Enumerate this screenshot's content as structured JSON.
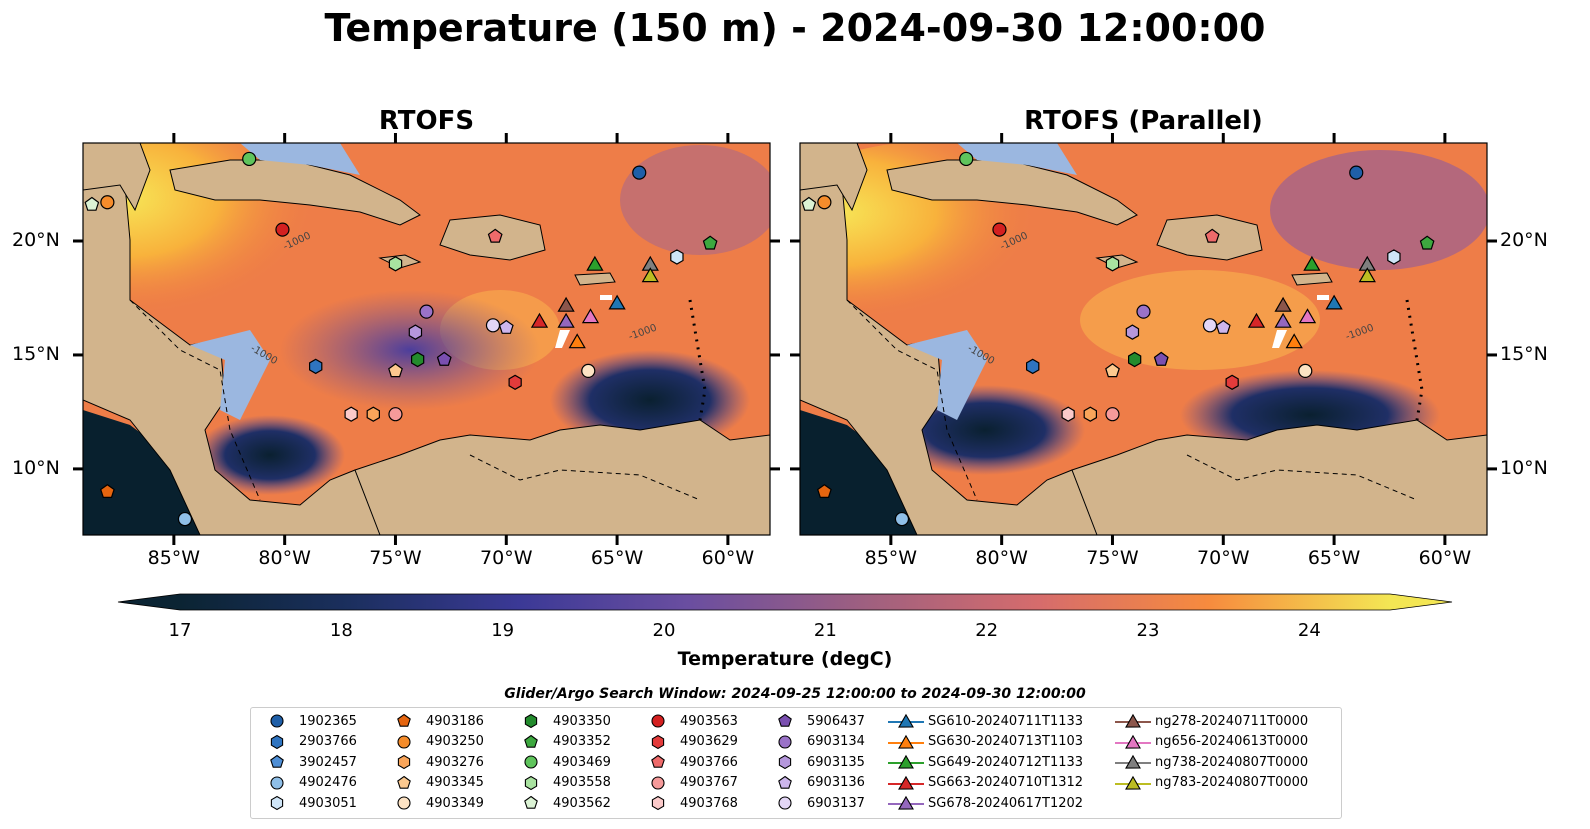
{
  "title": "Temperature (150 m) - 2024-09-30 12:00:00",
  "panels": [
    {
      "title": "RTOFS"
    },
    {
      "title": "RTOFS (Parallel)"
    }
  ],
  "map": {
    "lon_ticks": [
      "85°W",
      "80°W",
      "75°W",
      "70°W",
      "65°W",
      "60°W"
    ],
    "lat_ticks": [
      "20°N",
      "15°N",
      "10°N"
    ],
    "isobath_label": "-1000",
    "colors": {
      "land": "#d2b48c",
      "shelf": "#9bb7e0",
      "cold": "#08202e",
      "warm": "#f3e654"
    }
  },
  "colorbar": {
    "label": "Temperature (degC)",
    "ticks": [
      "17",
      "18",
      "19",
      "20",
      "21",
      "22",
      "23",
      "24"
    ],
    "range": [
      17,
      24.5
    ],
    "step": 0.25
  },
  "legend": {
    "title": "Glider/Argo Search Window: 2024-09-25 12:00:00 to 2024-09-30 12:00:00",
    "columns": [
      [
        {
          "label": "1902365",
          "shape": "circle",
          "color": "#1f5fa8"
        },
        {
          "label": "2903766",
          "shape": "hexagon",
          "color": "#2f74c0"
        },
        {
          "label": "3902457",
          "shape": "pentagon",
          "color": "#4f8fd6"
        },
        {
          "label": "4902476",
          "shape": "circle",
          "color": "#8fbfe8"
        },
        {
          "label": "4903051",
          "shape": "hexagon",
          "color": "#cfe5f7"
        }
      ],
      [
        {
          "label": "4903186",
          "shape": "pentagon",
          "color": "#e5650f"
        },
        {
          "label": "4903250",
          "shape": "circle",
          "color": "#f58c2b"
        },
        {
          "label": "4903276",
          "shape": "hexagon",
          "color": "#f9a55a"
        },
        {
          "label": "4903345",
          "shape": "pentagon",
          "color": "#fcc98f"
        },
        {
          "label": "4903349",
          "shape": "circle",
          "color": "#fde3c4"
        }
      ],
      [
        {
          "label": "4903350",
          "shape": "hexagon",
          "color": "#238b2d"
        },
        {
          "label": "4903352",
          "shape": "pentagon",
          "color": "#3da83f"
        },
        {
          "label": "4903469",
          "shape": "circle",
          "color": "#5fc45c"
        },
        {
          "label": "4903558",
          "shape": "hexagon",
          "color": "#a9e2a0"
        },
        {
          "label": "4903562",
          "shape": "pentagon",
          "color": "#dcf3d5"
        }
      ],
      [
        {
          "label": "4903563",
          "shape": "circle",
          "color": "#d42020"
        },
        {
          "label": "4903629",
          "shape": "hexagon",
          "color": "#e33b3b"
        },
        {
          "label": "4903766",
          "shape": "pentagon",
          "color": "#ee6a6a"
        },
        {
          "label": "4903767",
          "shape": "circle",
          "color": "#f59a9a"
        },
        {
          "label": "4903768",
          "shape": "hexagon",
          "color": "#fbcaca"
        }
      ],
      [
        {
          "label": "5906437",
          "shape": "pentagon",
          "color": "#7a4fb0"
        },
        {
          "label": "6903134",
          "shape": "circle",
          "color": "#9a72c8"
        },
        {
          "label": "6903135",
          "shape": "hexagon",
          "color": "#b597dc"
        },
        {
          "label": "6903136",
          "shape": "pentagon",
          "color": "#cdb6ec"
        },
        {
          "label": "6903137",
          "shape": "circle",
          "color": "#e3d6f6"
        }
      ],
      [
        {
          "label": "SG610-20240711T1133",
          "shape": "triangle",
          "color": "#1f77b4"
        },
        {
          "label": "SG630-20240713T1103",
          "shape": "triangle",
          "color": "#ff7f0e"
        },
        {
          "label": "SG649-20240712T1133",
          "shape": "triangle",
          "color": "#2ca02c"
        },
        {
          "label": "SG663-20240710T1312",
          "shape": "triangle",
          "color": "#d62728"
        },
        {
          "label": "SG678-20240617T1202",
          "shape": "triangle",
          "color": "#9467bd"
        }
      ],
      [
        {
          "label": "ng278-20240711T0000",
          "shape": "triangle",
          "color": "#8c564b"
        },
        {
          "label": "ng656-20240613T0000",
          "shape": "triangle",
          "color": "#e377c2"
        },
        {
          "label": "ng738-20240807T0000",
          "shape": "triangle",
          "color": "#7f7f7f"
        },
        {
          "label": "ng783-20240807T0000",
          "shape": "triangle",
          "color": "#bcbd22"
        }
      ]
    ]
  }
}
